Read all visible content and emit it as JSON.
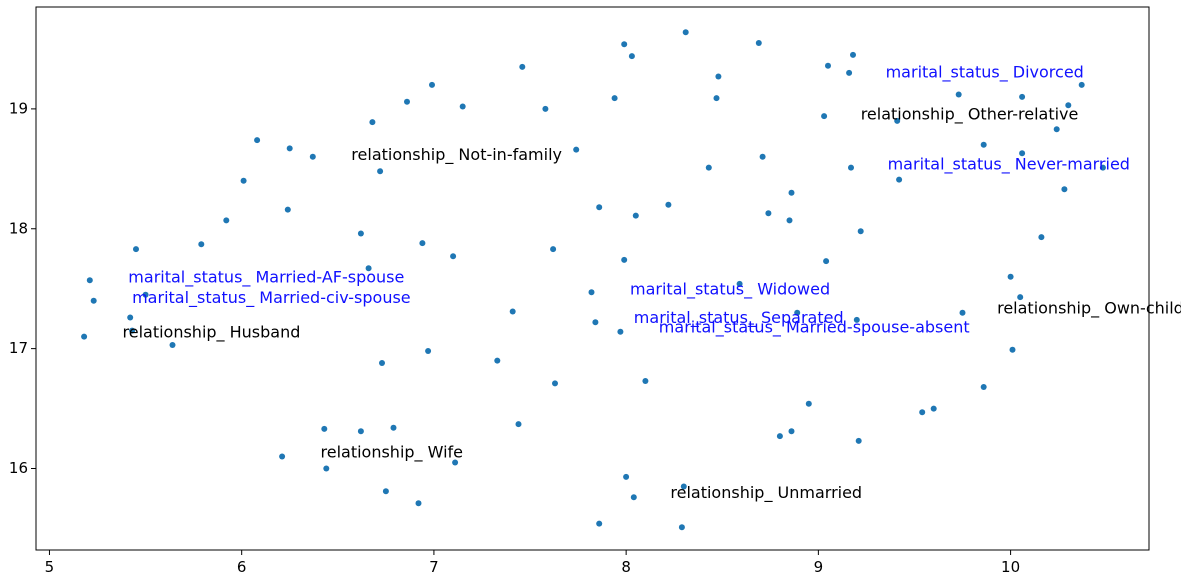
{
  "chart_data": {
    "type": "scatter",
    "title": "",
    "xlabel": "",
    "ylabel": "",
    "xlim": [
      4.93,
      10.72
    ],
    "ylim": [
      15.32,
      19.85
    ],
    "xticks": [
      5,
      6,
      7,
      8,
      9,
      10
    ],
    "yticks": [
      16,
      17,
      18,
      19
    ],
    "grid": false,
    "point_color": "#1f77b4",
    "points": [
      [
        5.18,
        17.1
      ],
      [
        5.21,
        17.57
      ],
      [
        5.23,
        17.4
      ],
      [
        5.42,
        17.26
      ],
      [
        5.45,
        17.83
      ],
      [
        5.64,
        17.03
      ],
      [
        5.79,
        17.87
      ],
      [
        5.92,
        18.07
      ],
      [
        6.01,
        18.4
      ],
      [
        6.08,
        18.74
      ],
      [
        6.21,
        16.1
      ],
      [
        6.24,
        18.16
      ],
      [
        6.25,
        18.67
      ],
      [
        6.37,
        18.6
      ],
      [
        6.43,
        16.33
      ],
      [
        6.44,
        16.0
      ],
      [
        6.62,
        16.31
      ],
      [
        6.62,
        17.96
      ],
      [
        6.66,
        17.67
      ],
      [
        6.68,
        18.89
      ],
      [
        6.72,
        18.48
      ],
      [
        6.73,
        16.88
      ],
      [
        6.75,
        15.81
      ],
      [
        6.79,
        16.34
      ],
      [
        6.86,
        19.06
      ],
      [
        6.92,
        15.71
      ],
      [
        6.94,
        17.88
      ],
      [
        6.97,
        16.98
      ],
      [
        6.99,
        19.2
      ],
      [
        7.1,
        17.77
      ],
      [
        7.11,
        16.05
      ],
      [
        7.15,
        19.02
      ],
      [
        7.33,
        16.9
      ],
      [
        7.41,
        17.31
      ],
      [
        7.44,
        16.37
      ],
      [
        7.46,
        19.35
      ],
      [
        7.58,
        19.0
      ],
      [
        7.62,
        17.83
      ],
      [
        7.63,
        16.71
      ],
      [
        7.74,
        18.66
      ],
      [
        7.82,
        17.47
      ],
      [
        7.84,
        17.22
      ],
      [
        7.86,
        15.54
      ],
      [
        7.86,
        18.18
      ],
      [
        7.94,
        19.09
      ],
      [
        7.97,
        17.14
      ],
      [
        7.99,
        17.74
      ],
      [
        7.99,
        19.54
      ],
      [
        8.0,
        15.93
      ],
      [
        8.03,
        19.44
      ],
      [
        8.04,
        15.76
      ],
      [
        8.05,
        18.11
      ],
      [
        8.1,
        16.73
      ],
      [
        8.22,
        18.2
      ],
      [
        8.29,
        15.51
      ],
      [
        8.3,
        15.85
      ],
      [
        8.31,
        19.64
      ],
      [
        8.43,
        18.51
      ],
      [
        8.47,
        19.09
      ],
      [
        8.48,
        19.27
      ],
      [
        8.59,
        17.54
      ],
      [
        8.69,
        19.55
      ],
      [
        8.71,
        18.6
      ],
      [
        8.74,
        18.13
      ],
      [
        8.8,
        16.27
      ],
      [
        8.85,
        18.07
      ],
      [
        8.86,
        18.3
      ],
      [
        8.86,
        16.31
      ],
      [
        8.89,
        17.3
      ],
      [
        8.95,
        16.54
      ],
      [
        9.03,
        18.94
      ],
      [
        9.04,
        17.73
      ],
      [
        9.05,
        19.36
      ],
      [
        9.16,
        19.3
      ],
      [
        9.17,
        18.51
      ],
      [
        9.18,
        19.45
      ],
      [
        9.2,
        17.24
      ],
      [
        9.21,
        16.23
      ],
      [
        9.22,
        17.98
      ],
      [
        9.41,
        18.9
      ],
      [
        9.42,
        18.41
      ],
      [
        9.54,
        16.47
      ],
      [
        9.6,
        16.5
      ],
      [
        9.73,
        19.12
      ],
      [
        9.75,
        17.3
      ],
      [
        9.86,
        16.68
      ],
      [
        9.86,
        18.7
      ],
      [
        10.0,
        17.6
      ],
      [
        10.01,
        16.99
      ],
      [
        10.05,
        17.43
      ],
      [
        10.06,
        19.1
      ],
      [
        10.06,
        18.63
      ],
      [
        10.24,
        18.83
      ],
      [
        10.28,
        18.33
      ],
      [
        10.3,
        19.03
      ],
      [
        10.37,
        19.2
      ],
      [
        10.16,
        17.93
      ],
      [
        10.48,
        18.51
      ],
      [
        5.5,
        17.45
      ],
      [
        5.43,
        17.15
      ]
    ],
    "annotations": [
      {
        "text": "marital_status_ Divorced",
        "x": 9.35,
        "y": 19.3,
        "color": "#1010ff"
      },
      {
        "text": "relationship_ Other-relative",
        "x": 9.22,
        "y": 18.95,
        "color": "#000000"
      },
      {
        "text": "marital_status_ Never-married",
        "x": 9.36,
        "y": 18.53,
        "color": "#1010ff"
      },
      {
        "text": "relationship_ Not-in-family",
        "x": 6.57,
        "y": 18.61,
        "color": "#000000"
      },
      {
        "text": "marital_status_ Married-AF-spouse",
        "x": 5.41,
        "y": 17.59,
        "color": "#1010ff"
      },
      {
        "text": "marital_status_ Married-civ-spouse",
        "x": 5.43,
        "y": 17.42,
        "color": "#1010ff"
      },
      {
        "text": "relationship_ Husband",
        "x": 5.38,
        "y": 17.13,
        "color": "#000000"
      },
      {
        "text": "marital_status_ Widowed",
        "x": 8.02,
        "y": 17.49,
        "color": "#1010ff"
      },
      {
        "text": "marital_status_ Separated",
        "x": 8.04,
        "y": 17.25,
        "color": "#1010ff"
      },
      {
        "text": "marital_status_ Married-spouse-absent",
        "x": 8.17,
        "y": 17.17,
        "color": "#1010ff"
      },
      {
        "text": "relationship_ Own-child",
        "x": 9.93,
        "y": 17.33,
        "color": "#000000"
      },
      {
        "text": "relationship_ Wife",
        "x": 6.41,
        "y": 16.13,
        "color": "#000000"
      },
      {
        "text": "relationship_ Unmarried",
        "x": 8.23,
        "y": 15.79,
        "color": "#000000"
      }
    ]
  }
}
